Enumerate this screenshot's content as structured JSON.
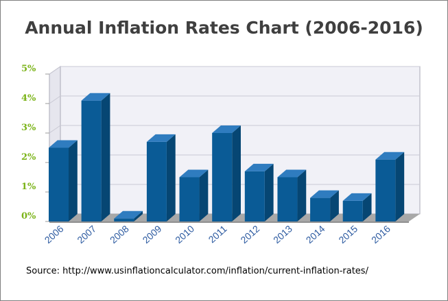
{
  "chart_data": {
    "type": "bar",
    "title": "Annual Inflation Rates Chart (2006-2016)",
    "categories": [
      "2006",
      "2007",
      "2008",
      "2009",
      "2010",
      "2011",
      "2012",
      "2013",
      "2014",
      "2015",
      "2016"
    ],
    "values": [
      2.5,
      4.1,
      0.1,
      2.7,
      1.5,
      3.0,
      1.7,
      1.5,
      0.8,
      0.7,
      2.1
    ],
    "ylim": [
      0,
      5
    ],
    "yticks": [
      "0%",
      "1%",
      "2%",
      "3%",
      "4%",
      "5%"
    ],
    "xlabel": "",
    "ylabel": "",
    "grid": true,
    "legend": "none"
  },
  "colors": {
    "bar_front": "#0a5b96",
    "bar_side": "#064673",
    "bar_top": "#2f7cbf",
    "tick_y": "#7ab317",
    "tick_x": "#2c5aa0",
    "wall": "#f1f1f7",
    "grid": "#c9c9d4"
  },
  "source_text": "Source: http://www.usinflationcalculator.com/inflation/current-inflation-rates/"
}
